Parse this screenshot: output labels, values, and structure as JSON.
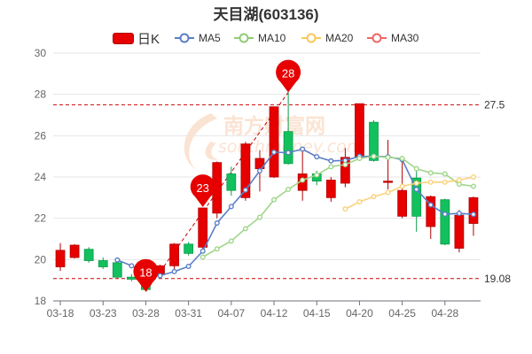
{
  "title": "天目湖(603136)",
  "legend": [
    {
      "key": "k",
      "label": "日K",
      "color": "#e60000"
    },
    {
      "key": "ma5",
      "label": "MA5",
      "color": "#5a7fc7"
    },
    {
      "key": "ma10",
      "label": "MA10",
      "color": "#91cc75"
    },
    {
      "key": "ma20",
      "label": "MA20",
      "color": "#fac858"
    },
    {
      "key": "ma30",
      "label": "MA30",
      "color": "#ee6666"
    }
  ],
  "watermark": "南方财富网",
  "watermark_url": "southmoney.com",
  "colors": {
    "up": "#e60000",
    "down": "#13c05e",
    "ma5": "#5a7fc7",
    "ma10": "#a0d68a",
    "ma20": "#fad27a",
    "ma30": "#ee6666",
    "ref": "#cc0000",
    "grid": "#e6e6e6",
    "axis": "#666666"
  },
  "chart_data": {
    "type": "candlestick",
    "title": "天目湖(603136)",
    "ylim": [
      18,
      30
    ],
    "yticks": [
      18,
      20,
      22,
      24,
      26,
      28,
      30
    ],
    "xlabels": [
      "03-18",
      "03-23",
      "03-28",
      "03-31",
      "04-07",
      "04-12",
      "04-15",
      "04-20",
      "04-25",
      "04-28"
    ],
    "candles": [
      {
        "date": "03-18",
        "open": 19.65,
        "close": 20.45,
        "high": 20.8,
        "low": 19.45
      },
      {
        "date": "03-21",
        "open": 20.1,
        "close": 20.7,
        "high": 20.75,
        "low": 20.05
      },
      {
        "date": "03-22",
        "open": 20.5,
        "close": 19.95,
        "high": 20.6,
        "low": 19.85
      },
      {
        "date": "03-23",
        "open": 19.95,
        "close": 19.65,
        "high": 20.1,
        "low": 19.55
      },
      {
        "date": "03-24",
        "open": 19.85,
        "close": 19.15,
        "high": 19.9,
        "low": 19.1
      },
      {
        "date": "03-25",
        "open": 19.15,
        "close": 19.05,
        "high": 19.3,
        "low": 18.95
      },
      {
        "date": "03-28",
        "open": 19.1,
        "close": 18.55,
        "high": 19.45,
        "low": 18.45
      },
      {
        "date": "03-29",
        "open": 19.3,
        "close": 19.7,
        "high": 19.75,
        "low": 19.25
      },
      {
        "date": "03-30",
        "open": 19.7,
        "close": 20.75,
        "high": 20.8,
        "low": 19.5
      },
      {
        "date": "03-31",
        "open": 20.75,
        "close": 20.3,
        "high": 20.85,
        "low": 20.2
      },
      {
        "date": "04-01",
        "open": 20.6,
        "close": 22.5,
        "high": 22.5,
        "low": 20.5
      },
      {
        "date": "04-06",
        "open": 22.25,
        "close": 24.7,
        "high": 24.75,
        "low": 22.0
      },
      {
        "date": "04-07",
        "open": 24.15,
        "close": 23.35,
        "high": 24.5,
        "low": 23.1
      },
      {
        "date": "04-08",
        "open": 23.0,
        "close": 25.6,
        "high": 25.7,
        "low": 22.85
      },
      {
        "date": "04-11",
        "open": 24.4,
        "close": 24.9,
        "high": 25.3,
        "low": 23.3
      },
      {
        "date": "04-12",
        "open": 24.0,
        "close": 27.4,
        "high": 27.4,
        "low": 23.95
      },
      {
        "date": "04-13",
        "open": 26.2,
        "close": 24.65,
        "high": 28.1,
        "low": 24.6
      },
      {
        "date": "04-14",
        "open": 23.35,
        "close": 24.15,
        "high": 25.4,
        "low": 22.85
      },
      {
        "date": "04-15",
        "open": 24.15,
        "close": 23.8,
        "high": 24.3,
        "low": 23.6
      },
      {
        "date": "04-18",
        "open": 23.0,
        "close": 23.85,
        "high": 24.0,
        "low": 22.8
      },
      {
        "date": "04-19",
        "open": 23.7,
        "close": 24.95,
        "high": 25.4,
        "low": 23.5
      },
      {
        "date": "04-20",
        "open": 24.95,
        "close": 27.55,
        "high": 27.55,
        "low": 24.85
      },
      {
        "date": "04-21",
        "open": 26.65,
        "close": 24.8,
        "high": 26.75,
        "low": 24.75
      },
      {
        "date": "04-22",
        "open": 23.75,
        "close": 23.8,
        "high": 25.8,
        "low": 23.4
      },
      {
        "date": "04-25",
        "open": 22.1,
        "close": 23.35,
        "high": 24.85,
        "low": 22.0
      },
      {
        "date": "04-26",
        "open": 23.95,
        "close": 22.1,
        "high": 24.3,
        "low": 21.35
      },
      {
        "date": "04-27",
        "open": 21.6,
        "close": 23.05,
        "high": 23.1,
        "low": 21.0
      },
      {
        "date": "04-28",
        "open": 22.9,
        "close": 20.75,
        "high": 22.95,
        "low": 20.7
      },
      {
        "date": "04-29",
        "open": 20.55,
        "close": 22.15,
        "high": 22.4,
        "low": 20.35
      },
      {
        "date": "05-05",
        "open": 21.75,
        "close": 23.0,
        "high": 23.05,
        "low": 21.15
      }
    ],
    "series": [
      {
        "name": "MA5",
        "values": [
          null,
          null,
          null,
          null,
          19.98,
          19.7,
          19.27,
          19.22,
          19.42,
          19.67,
          20.41,
          21.77,
          22.57,
          23.37,
          24.3,
          25.2,
          25.18,
          25.35,
          24.98,
          24.78,
          24.8,
          25.0,
          25.0,
          24.98,
          24.84,
          23.4,
          22.65,
          22.2,
          22.24,
          22.19
        ]
      },
      {
        "name": "MA10",
        "values": [
          null,
          null,
          null,
          null,
          null,
          null,
          null,
          null,
          null,
          null,
          20.12,
          20.52,
          20.9,
          21.5,
          22.05,
          22.9,
          23.4,
          23.85,
          24.1,
          24.5,
          24.6,
          24.9,
          25.0,
          24.95,
          24.9,
          24.4,
          24.2,
          24.15,
          23.65,
          23.55
        ]
      },
      {
        "name": "MA20",
        "values": [
          null,
          null,
          null,
          null,
          null,
          null,
          null,
          null,
          null,
          null,
          null,
          null,
          null,
          null,
          null,
          null,
          null,
          null,
          null,
          null,
          22.45,
          22.8,
          23.05,
          23.25,
          23.55,
          23.7,
          23.75,
          23.75,
          23.85,
          24.0
        ]
      },
      {
        "name": "MA30",
        "values": []
      }
    ],
    "reference_lines": [
      {
        "label": "27.5",
        "value": 27.5
      },
      {
        "label": "19.08",
        "value": 19.08
      }
    ],
    "markers": [
      {
        "label": "18",
        "date": "03-28",
        "value": 18.45
      },
      {
        "label": "23",
        "date": "04-01",
        "value": 22.55
      },
      {
        "label": "28",
        "date": "04-13",
        "value": 28.1
      }
    ]
  }
}
